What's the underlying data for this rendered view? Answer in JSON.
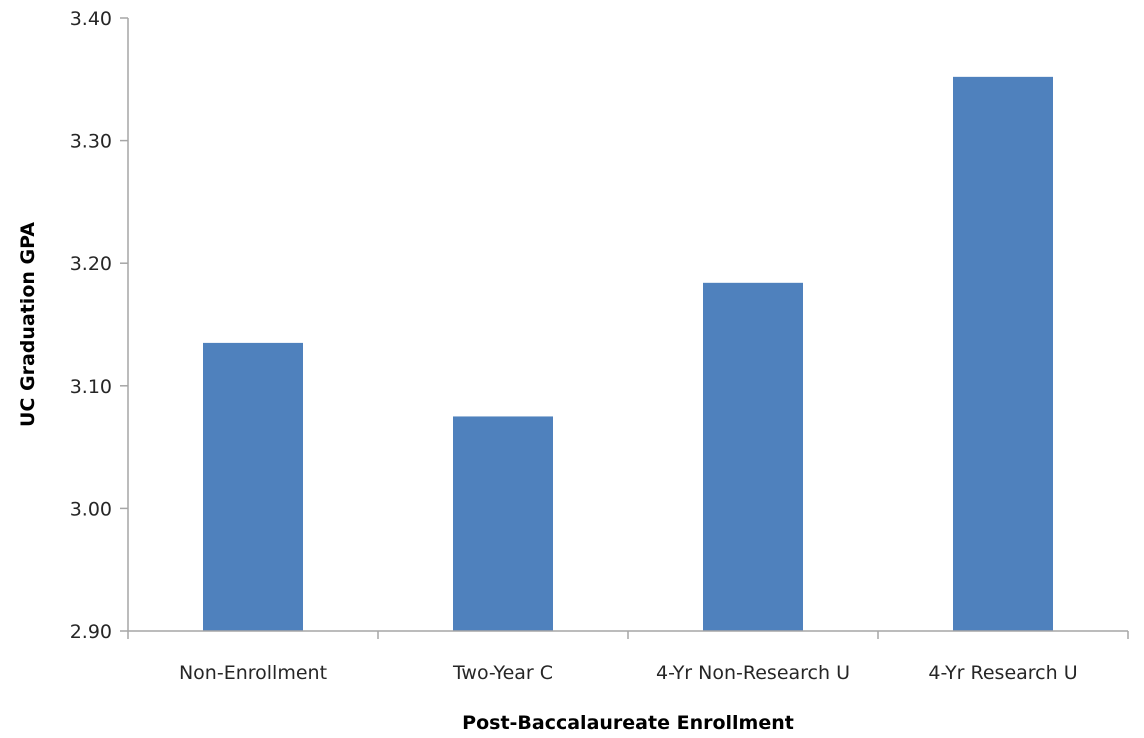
{
  "chart_data": {
    "type": "bar",
    "title": "",
    "xlabel": "Post-Baccalaureate Enrollment",
    "ylabel": "UC Graduation GPA",
    "categories": [
      "Non-Enrollment",
      "Two-Year C",
      "4-Yr Non-Research U",
      "4-Yr Research U"
    ],
    "values": [
      3.135,
      3.075,
      3.184,
      3.352
    ],
    "ylim": [
      2.9,
      3.4
    ],
    "yticks": [
      "2.90",
      "3.00",
      "3.10",
      "3.20",
      "3.30",
      "3.40"
    ],
    "grid": false,
    "legend": "none",
    "bar_color": "#4f81bd"
  }
}
